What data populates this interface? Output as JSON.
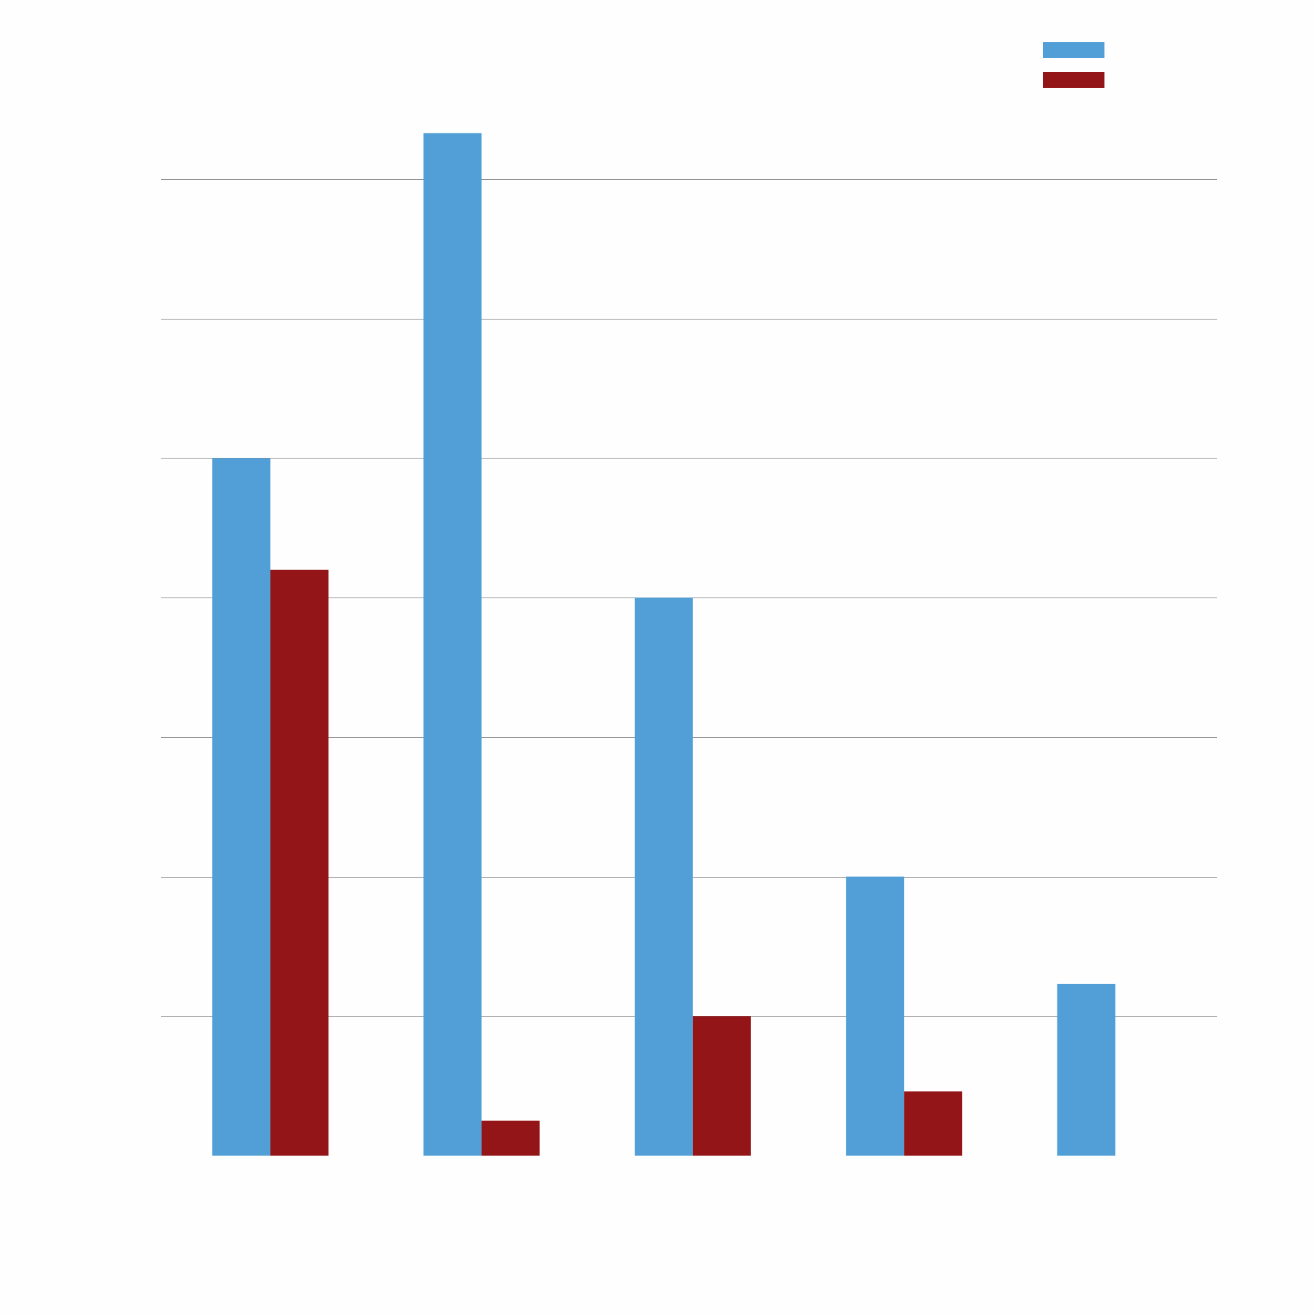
{
  "chart_data": {
    "type": "bar",
    "title": "",
    "xlabel": "",
    "ylabel": "",
    "categories": [
      "",
      "",
      "",
      "",
      ""
    ],
    "series": [
      {
        "color": "#519fd6",
        "values": [
          5.0,
          7.33,
          4.0,
          2.0,
          1.23
        ]
      },
      {
        "color": "#931517",
        "values": [
          4.2,
          0.25,
          1.0,
          0.46,
          0
        ]
      }
    ],
    "ylim": [
      0,
      7
    ],
    "grid": true,
    "legend": "top-right"
  },
  "colors": {
    "background": "#fefefe",
    "grid": "#8c8c8c"
  }
}
